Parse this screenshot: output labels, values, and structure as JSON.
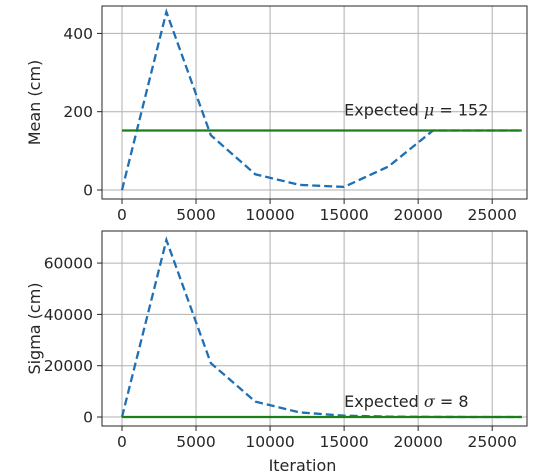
{
  "chart_data": [
    {
      "type": "line",
      "title": "",
      "xlabel": "",
      "ylabel": "Mean (cm)",
      "xlim": [
        -1350,
        27350
      ],
      "ylim": [
        -23,
        470
      ],
      "xticks": [
        0,
        5000,
        10000,
        15000,
        20000,
        25000
      ],
      "xtick_labels": [
        "0",
        "5000",
        "10000",
        "15000",
        "20000",
        "25000"
      ],
      "yticks": [
        0,
        200,
        400
      ],
      "ytick_labels": [
        "0",
        "200",
        "400"
      ],
      "grid": true,
      "series": [
        {
          "style": "dashed",
          "color": "#1f6fb4",
          "x": [
            0,
            3000,
            6000,
            9000,
            12000,
            15000,
            18000,
            21000,
            24000,
            27000
          ],
          "values": [
            0,
            455,
            140,
            40,
            13,
            8,
            60,
            152,
            152,
            152
          ]
        },
        {
          "style": "solid",
          "color": "#1a7f1a",
          "x": [
            0,
            27000
          ],
          "values": [
            152,
            152
          ]
        }
      ],
      "annotation": {
        "prefix": "Expected ",
        "symbol": "μ",
        "suffix": " = 152",
        "x": 15000,
        "y": 190
      }
    },
    {
      "type": "line",
      "title": "",
      "xlabel": "Iteration",
      "ylabel": "Sigma (cm)",
      "xlim": [
        -1350,
        27350
      ],
      "ylim": [
        -3500,
        72500
      ],
      "xticks": [
        0,
        5000,
        10000,
        15000,
        20000,
        25000
      ],
      "xtick_labels": [
        "0",
        "5000",
        "10000",
        "15000",
        "20000",
        "25000"
      ],
      "yticks": [
        0,
        20000,
        40000,
        60000
      ],
      "ytick_labels": [
        "0",
        "20000",
        "40000",
        "60000"
      ],
      "grid": true,
      "series": [
        {
          "style": "dashed",
          "color": "#1f6fb4",
          "x": [
            0,
            3000,
            6000,
            9000,
            12000,
            15000,
            18000,
            21000,
            24000,
            27000
          ],
          "values": [
            0,
            69000,
            21000,
            6000,
            1800,
            500,
            150,
            50,
            20,
            10
          ]
        },
        {
          "style": "solid",
          "color": "#1a7f1a",
          "x": [
            0,
            27000
          ],
          "values": [
            8,
            8
          ]
        }
      ],
      "annotation": {
        "prefix": "Expected ",
        "symbol": "σ",
        "suffix": " = 8",
        "x": 15000,
        "y": 4000
      }
    }
  ]
}
